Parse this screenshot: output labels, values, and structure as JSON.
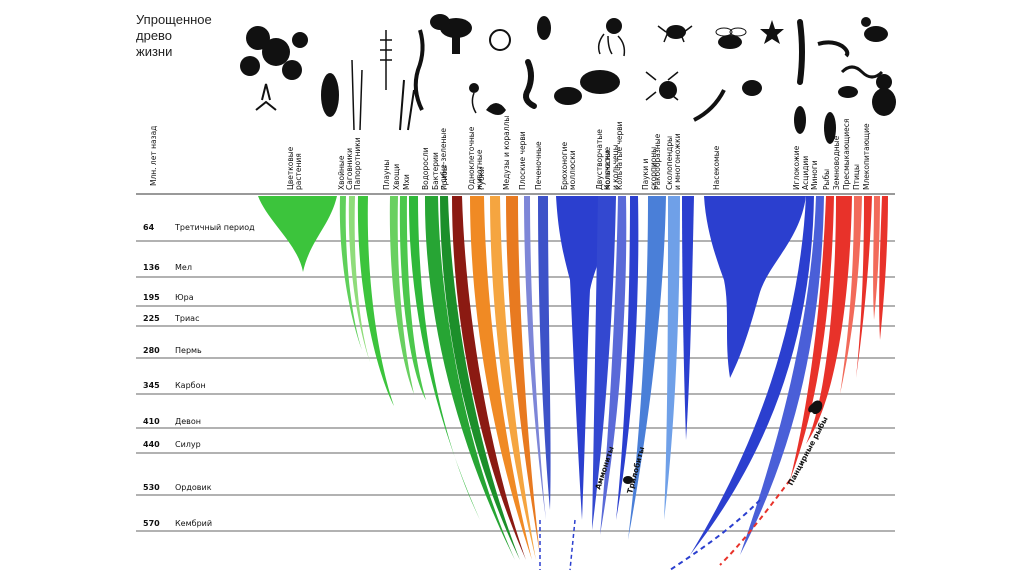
{
  "title": [
    "Упрощенное",
    "древо",
    "жизни"
  ],
  "axis_title": "Млн. лет назад",
  "colors": {
    "plants": "#3cc43c",
    "plants_dark": "#1f8f2a",
    "red_brown": "#8b1a12",
    "orange": "#f08a24",
    "blue": "#2b3fcf",
    "blue_light": "#4a7fd8",
    "red": "#e8322a",
    "line": "#333333"
  },
  "periods": [
    {
      "mya": "64",
      "name": "Третичный период"
    },
    {
      "mya": "136",
      "name": "Мел"
    },
    {
      "mya": "195",
      "name": "Юра"
    },
    {
      "mya": "225",
      "name": "Триас"
    },
    {
      "mya": "280",
      "name": "Пермь"
    },
    {
      "mya": "345",
      "name": "Карбон"
    },
    {
      "mya": "410",
      "name": "Девон"
    },
    {
      "mya": "440",
      "name": "Силур"
    },
    {
      "mya": "530",
      "name": "Ордовик"
    },
    {
      "mya": "570",
      "name": "Кембрий"
    }
  ],
  "groups": [
    {
      "lines": [
        "Цветковые",
        "растения"
      ]
    },
    {
      "lines": [
        "Хвойные"
      ]
    },
    {
      "lines": [
        "Саговники"
      ]
    },
    {
      "lines": [
        "Папоротники"
      ]
    },
    {
      "lines": [
        "Плауны"
      ]
    },
    {
      "lines": [
        "Хвощи"
      ]
    },
    {
      "lines": [
        "Мхи"
      ]
    },
    {
      "lines": [
        "Водоросли"
      ]
    },
    {
      "lines": [
        "Бактерии",
        "и сине-зеленые"
      ]
    },
    {
      "lines": [
        "Грибы"
      ]
    },
    {
      "lines": [
        "Одноклеточные",
        "животные"
      ]
    },
    {
      "lines": [
        "Губки"
      ]
    },
    {
      "lines": [
        "Медузы и кораллы"
      ]
    },
    {
      "lines": [
        "Плоские черви"
      ]
    },
    {
      "lines": [
        "Печеночные"
      ]
    },
    {
      "lines": [
        "Брюхоногие",
        "моллюски"
      ]
    },
    {
      "lines": [
        "Двустворчатые",
        "моллюски"
      ]
    },
    {
      "lines": [
        "Кольчатые",
        "и кольчецы"
      ]
    },
    {
      "lines": [
        "Кольчатые черви"
      ]
    },
    {
      "lines": [
        "Пауки и",
        "скорпионы"
      ]
    },
    {
      "lines": [
        "Ракообразные"
      ]
    },
    {
      "lines": [
        "Сколопендры",
        "и многоножки"
      ]
    },
    {
      "lines": [
        "Насекомые"
      ]
    },
    {
      "lines": [
        "Иглокожие"
      ]
    },
    {
      "lines": [
        "Асцидии"
      ]
    },
    {
      "lines": [
        "Миноги"
      ]
    },
    {
      "lines": [
        "Рыбы"
      ]
    },
    {
      "lines": [
        "Земноводные"
      ]
    },
    {
      "lines": [
        "Пресмыкающиеся"
      ]
    },
    {
      "lines": [
        "Птицы"
      ]
    },
    {
      "lines": [
        "Млекопитающие"
      ]
    }
  ],
  "fossil_labels": [
    "Аммониты",
    "Трилобиты",
    "Панцирные рыбы"
  ]
}
